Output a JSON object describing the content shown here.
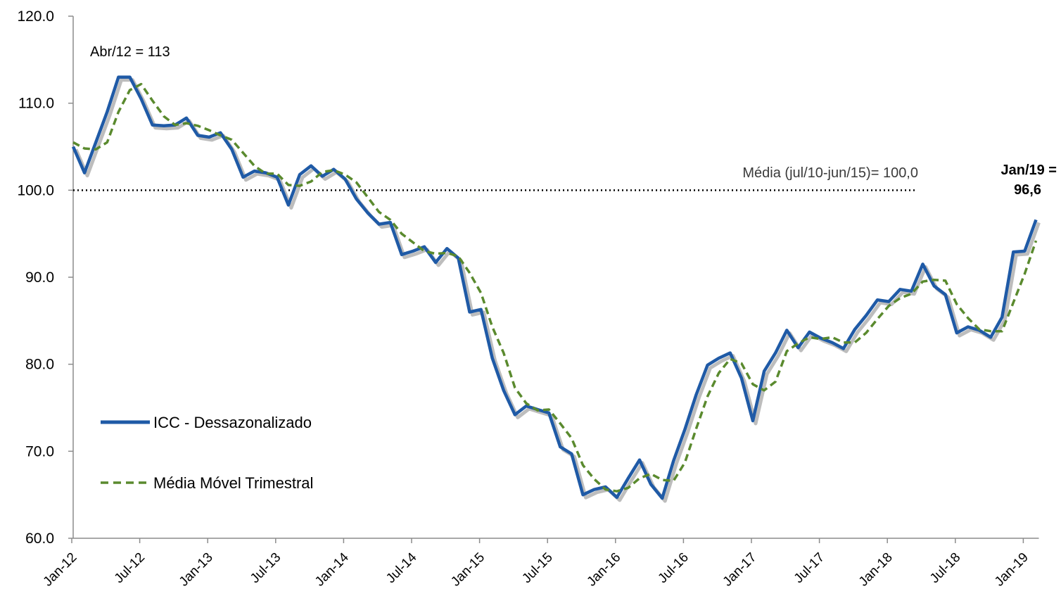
{
  "chart_data": {
    "type": "line",
    "title": "",
    "xlabel": "",
    "ylabel": "",
    "ylim": [
      60,
      120
    ],
    "yticks": [
      "60.0",
      "70.0",
      "80.0",
      "90.0",
      "100.0",
      "110.0",
      "120.0"
    ],
    "xtick_labels": [
      "Jan-12",
      "Jul-12",
      "Jan-13",
      "Jul-13",
      "Jan-14",
      "Jul-14",
      "Jan-15",
      "Jul-15",
      "Jan-16",
      "Jul-16",
      "Jan-17",
      "Jul-17",
      "Jan-18",
      "Jul-18",
      "Jan-19"
    ],
    "x_start": "Jan-12",
    "x_end": "Jan-19",
    "grid": false,
    "legend_position": "lower-left",
    "series": [
      {
        "name": "ICC - Dessazonalizado",
        "color": "#1f5aa6",
        "style": "solid",
        "values": [
          105.0,
          102.0,
          105.5,
          109.0,
          113.0,
          113.0,
          110.5,
          107.5,
          107.4,
          107.5,
          108.3,
          106.3,
          106.1,
          106.6,
          104.7,
          101.5,
          102.2,
          102.0,
          101.5,
          98.3,
          101.8,
          102.8,
          101.6,
          102.4,
          101.3,
          99.0,
          97.4,
          96.1,
          96.3,
          92.6,
          93.0,
          93.5,
          91.7,
          93.3,
          92.2,
          86.0,
          86.3,
          80.7,
          77.0,
          74.2,
          75.2,
          74.8,
          74.4,
          70.5,
          69.7,
          65.0,
          65.6,
          65.9,
          64.7,
          66.9,
          69.0,
          66.2,
          64.6,
          68.9,
          72.5,
          76.5,
          79.9,
          80.7,
          81.3,
          78.4,
          73.5,
          79.2,
          81.3,
          83.9,
          81.9,
          83.7,
          83.0,
          82.5,
          81.8,
          84.0,
          85.6,
          87.4,
          87.2,
          88.6,
          88.4,
          91.5,
          89.0,
          88.0,
          83.6,
          84.3,
          83.9,
          83.1,
          85.4,
          92.9,
          93.0,
          96.6
        ]
      },
      {
        "name": "Média Móvel Trimestral",
        "color": "#5a8a2e",
        "style": "dashed",
        "values": [
          105.5,
          104.8,
          104.7,
          105.5,
          109.0,
          111.5,
          112.2,
          110.3,
          108.5,
          107.5,
          107.7,
          107.4,
          106.9,
          106.3,
          105.8,
          104.3,
          102.8,
          101.9,
          101.9,
          100.6,
          100.5,
          101.0,
          102.1,
          102.3,
          101.8,
          100.9,
          99.2,
          97.5,
          96.6,
          95.0,
          94.0,
          93.0,
          92.7,
          92.8,
          92.4,
          90.5,
          88.2,
          84.3,
          81.3,
          77.3,
          75.5,
          74.7,
          74.8,
          73.2,
          71.5,
          68.4,
          66.8,
          65.6,
          65.4,
          65.8,
          66.9,
          67.4,
          66.7,
          66.6,
          68.7,
          72.6,
          76.3,
          79.0,
          80.6,
          80.1,
          77.7,
          77.0,
          78.0,
          81.5,
          82.4,
          83.1,
          82.9,
          83.1,
          82.5,
          82.5,
          83.6,
          85.2,
          86.7,
          87.6,
          88.1,
          89.5,
          89.7,
          89.6,
          86.9,
          85.3,
          84.0,
          83.8,
          83.8,
          87.1,
          90.4,
          94.2
        ]
      }
    ],
    "reference_line": {
      "value": 100.0,
      "label": "Média (jul/10-jun/15)= 100,0"
    },
    "annotations": {
      "peak": "Abr/12 = 113",
      "last_line1": "Jan/19 =",
      "last_line2": "96,6"
    }
  }
}
